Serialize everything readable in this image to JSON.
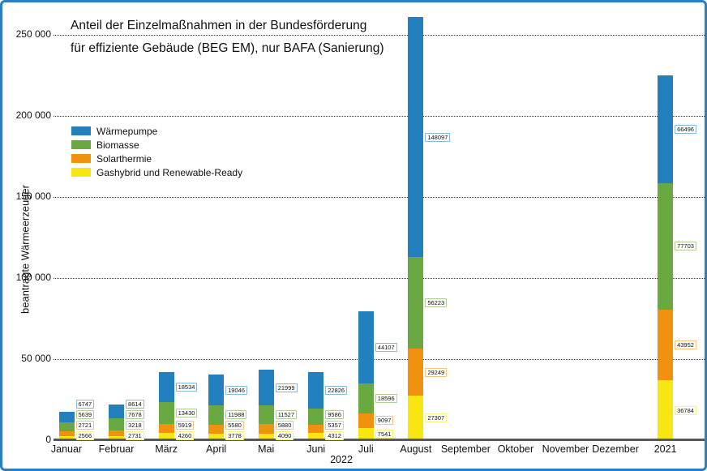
{
  "frame": {
    "border_color": "#2B7EC0"
  },
  "title": {
    "line1": "Anteil der Einzelmaßnahmen in der Bundesförderung",
    "line2": "für effiziente Gebäude (BEG EM), nur BAFA (Sanierung)"
  },
  "y_axis": {
    "label": "beantragte Wärmeerzeuger",
    "ticks": [
      "0",
      "50 000",
      "100 000",
      "150 000",
      "200 000",
      "250 000"
    ],
    "tick_values": [
      0,
      50000,
      100000,
      150000,
      200000,
      250000
    ]
  },
  "x_axis": {
    "year_label": "2022"
  },
  "chart_data": {
    "type": "bar",
    "stacked": true,
    "title": "Anteil der Einzelmaßnahmen in der Bundesförderung für effiziente Gebäude (BEG EM), nur BAFA (Sanierung)",
    "xlabel": "2022",
    "ylabel": "beantragte Wärmeerzeuger",
    "ylim": [
      0,
      250000
    ],
    "grid": "dotted-horizontal",
    "legend_position": "upper-left-inside",
    "categories": [
      "Januar",
      "Februar",
      "März",
      "April",
      "Mai",
      "Juni",
      "Juli",
      "August",
      "September",
      "Oktober",
      "November",
      "Dezember",
      "2021"
    ],
    "series": [
      {
        "name": "Wärmepumpe",
        "color": "#2280BF",
        "values": [
          6747,
          8614,
          18534,
          19046,
          21999,
          22826,
          44107,
          148097,
          null,
          null,
          null,
          null,
          66496
        ]
      },
      {
        "name": "Biomasse",
        "color": "#6AA842",
        "values": [
          5639,
          7678,
          13430,
          11988,
          11527,
          9586,
          18596,
          56223,
          null,
          null,
          null,
          null,
          77703
        ]
      },
      {
        "name": "Solarthermie",
        "color": "#F0920D",
        "values": [
          2721,
          3218,
          5919,
          5580,
          5880,
          5357,
          9097,
          29249,
          null,
          null,
          null,
          null,
          43952
        ]
      },
      {
        "name": "Gashybrid und Renewable-Ready",
        "color": "#F7E612",
        "values": [
          2566,
          2731,
          4260,
          3778,
          4090,
          4312,
          7541,
          27307,
          null,
          null,
          null,
          null,
          36784
        ]
      }
    ]
  }
}
